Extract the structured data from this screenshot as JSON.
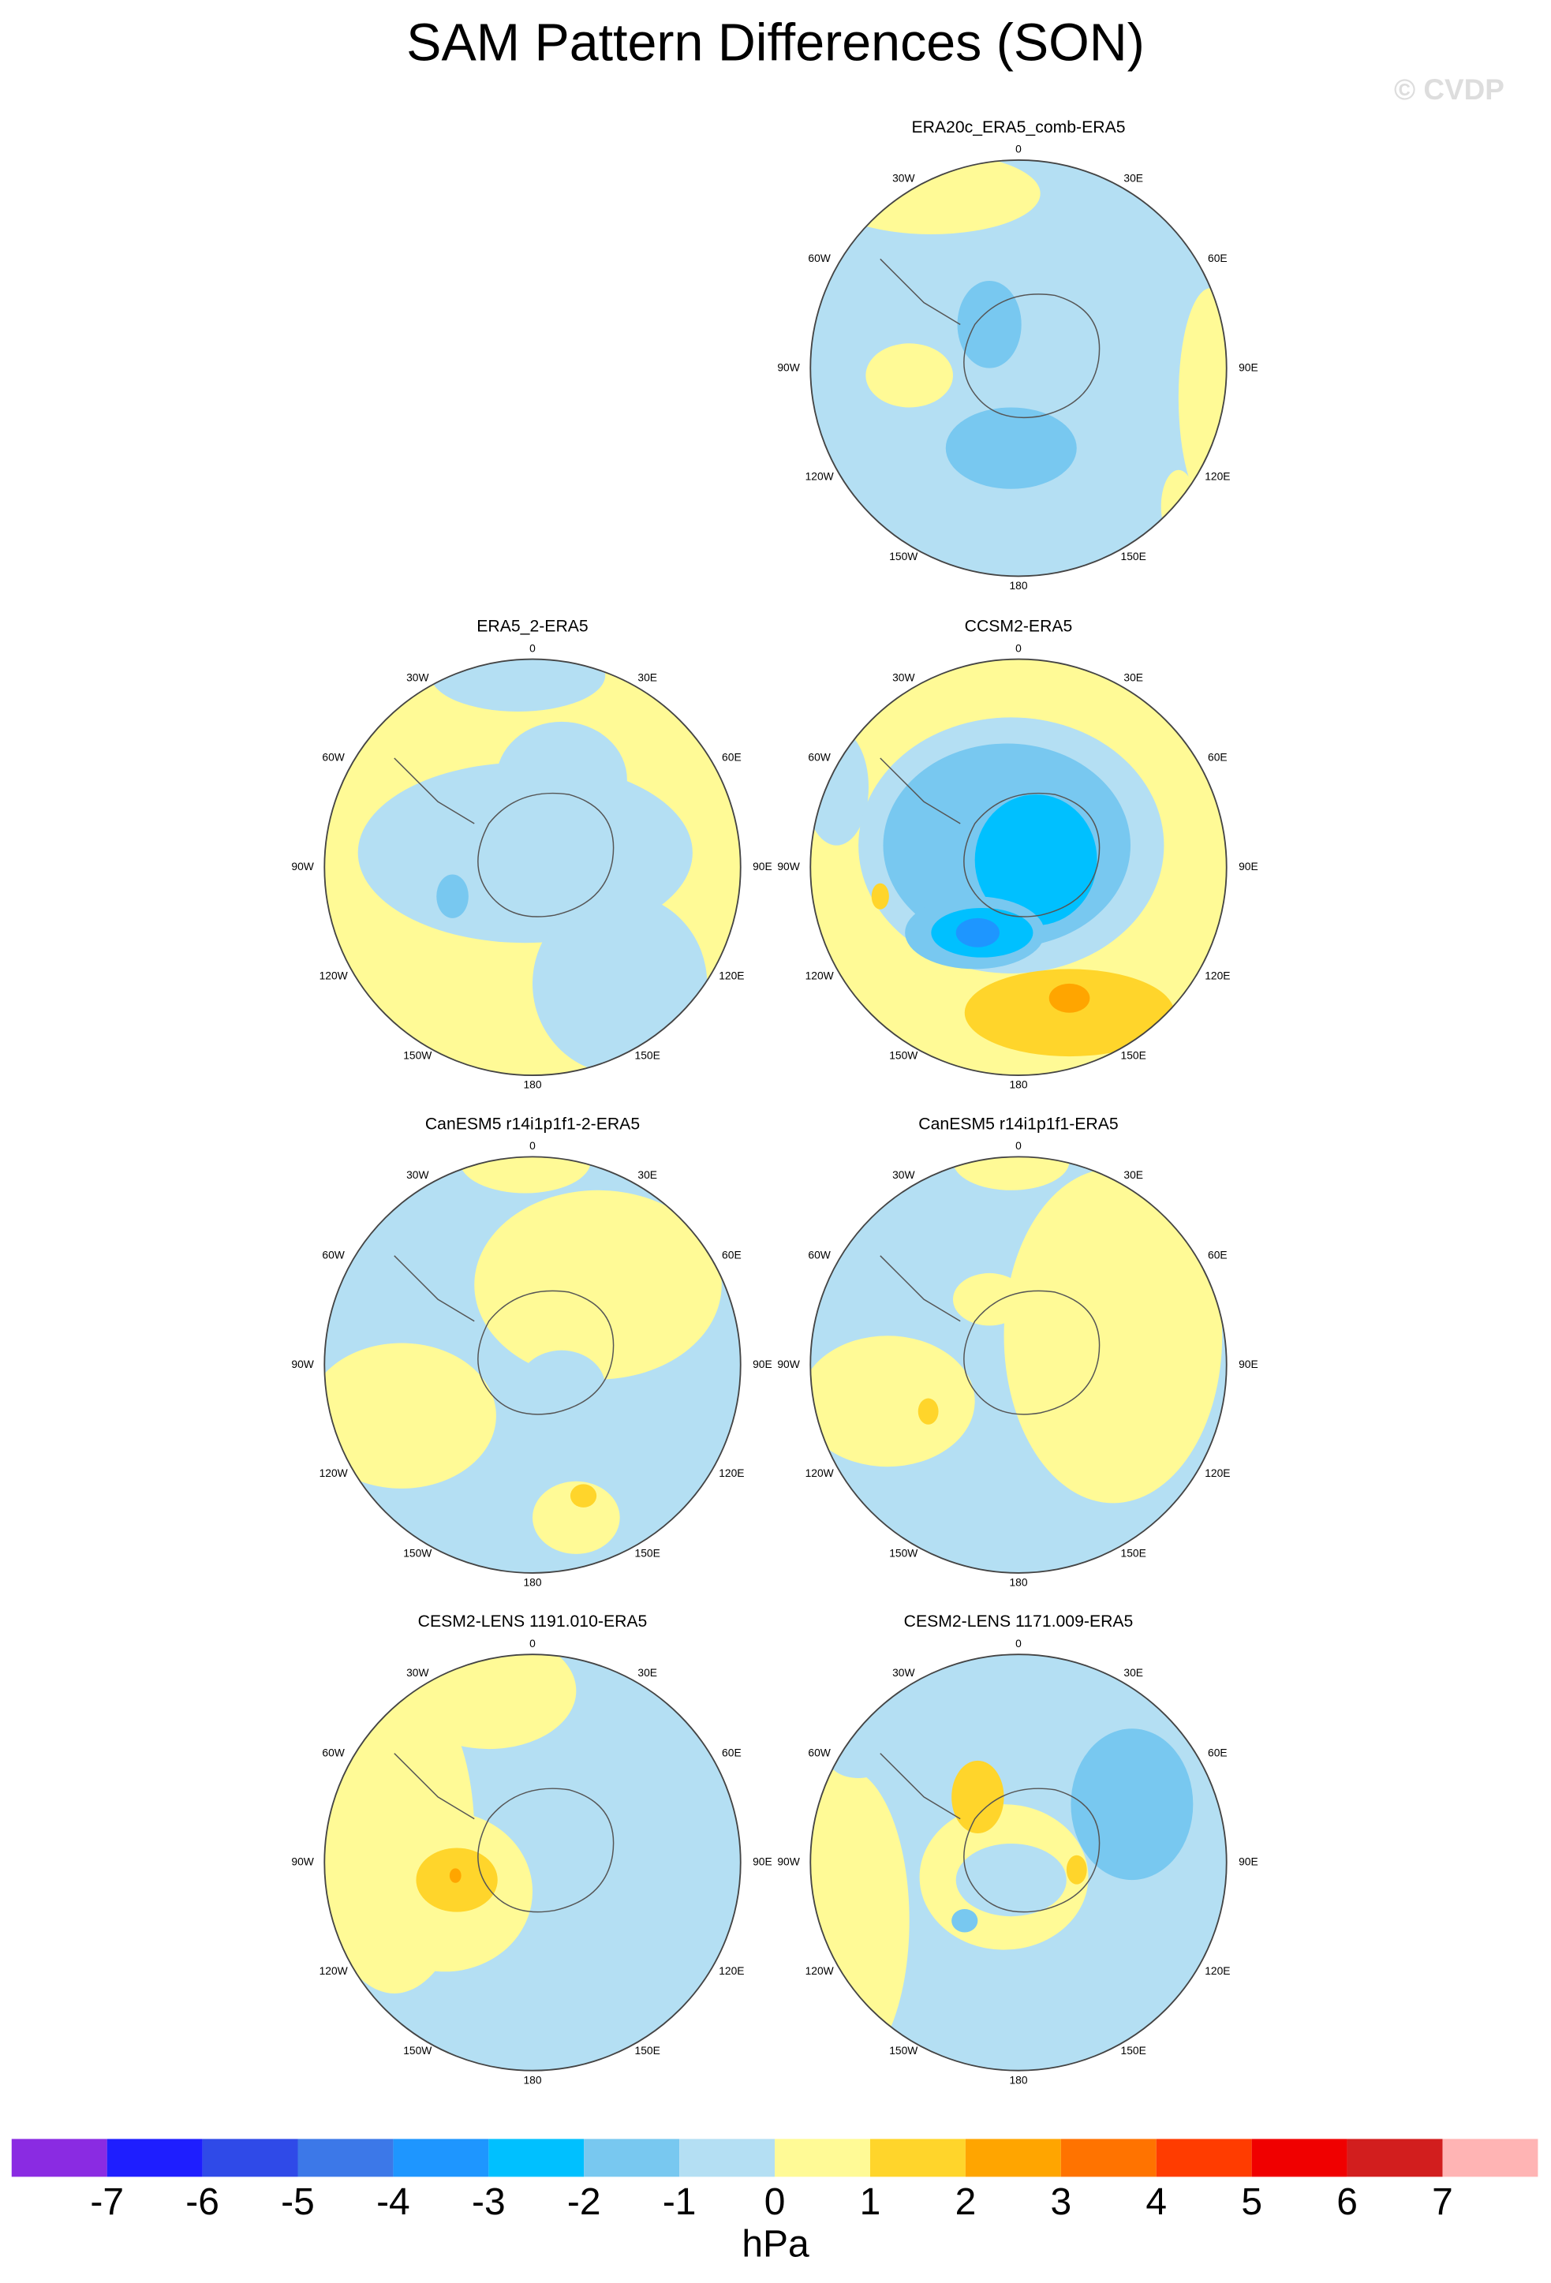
{
  "title": "SAM Pattern Differences (SON)",
  "watermark": "© CVDP",
  "lon_labels": [
    "0",
    "30E",
    "60E",
    "90E",
    "120E",
    "150E",
    "180",
    "150W",
    "120W",
    "90W",
    "60W",
    "30W"
  ],
  "panels": [
    {
      "title": "ERA20c_ERA5_comb-ERA5"
    },
    {
      "title": "ERA5_2-ERA5"
    },
    {
      "title": "CCSM2-ERA5"
    },
    {
      "title": "CanESM5 r14i1p1f1-2-ERA5"
    },
    {
      "title": "CanESM5 r14i1p1f1-ERA5"
    },
    {
      "title": "CESM2-LENS 1191.010-ERA5"
    },
    {
      "title": "CESM2-LENS 1171.009-ERA5"
    }
  ],
  "colorbar": {
    "colors": [
      "#8a2be2",
      "#1e1eff",
      "#2f4ae8",
      "#3c78e8",
      "#1e96ff",
      "#00c0ff",
      "#78c8f0",
      "#b4dff3",
      "#fffa96",
      "#ffd52b",
      "#ffa500",
      "#ff7300",
      "#ff3c00",
      "#f00000",
      "#d21e1e",
      "#ffb4b4"
    ],
    "labels": [
      -7,
      -6,
      -5,
      -4,
      -3,
      -2,
      -1,
      0,
      1,
      2,
      3,
      4,
      5,
      6,
      7
    ],
    "unit": "hPa"
  }
}
